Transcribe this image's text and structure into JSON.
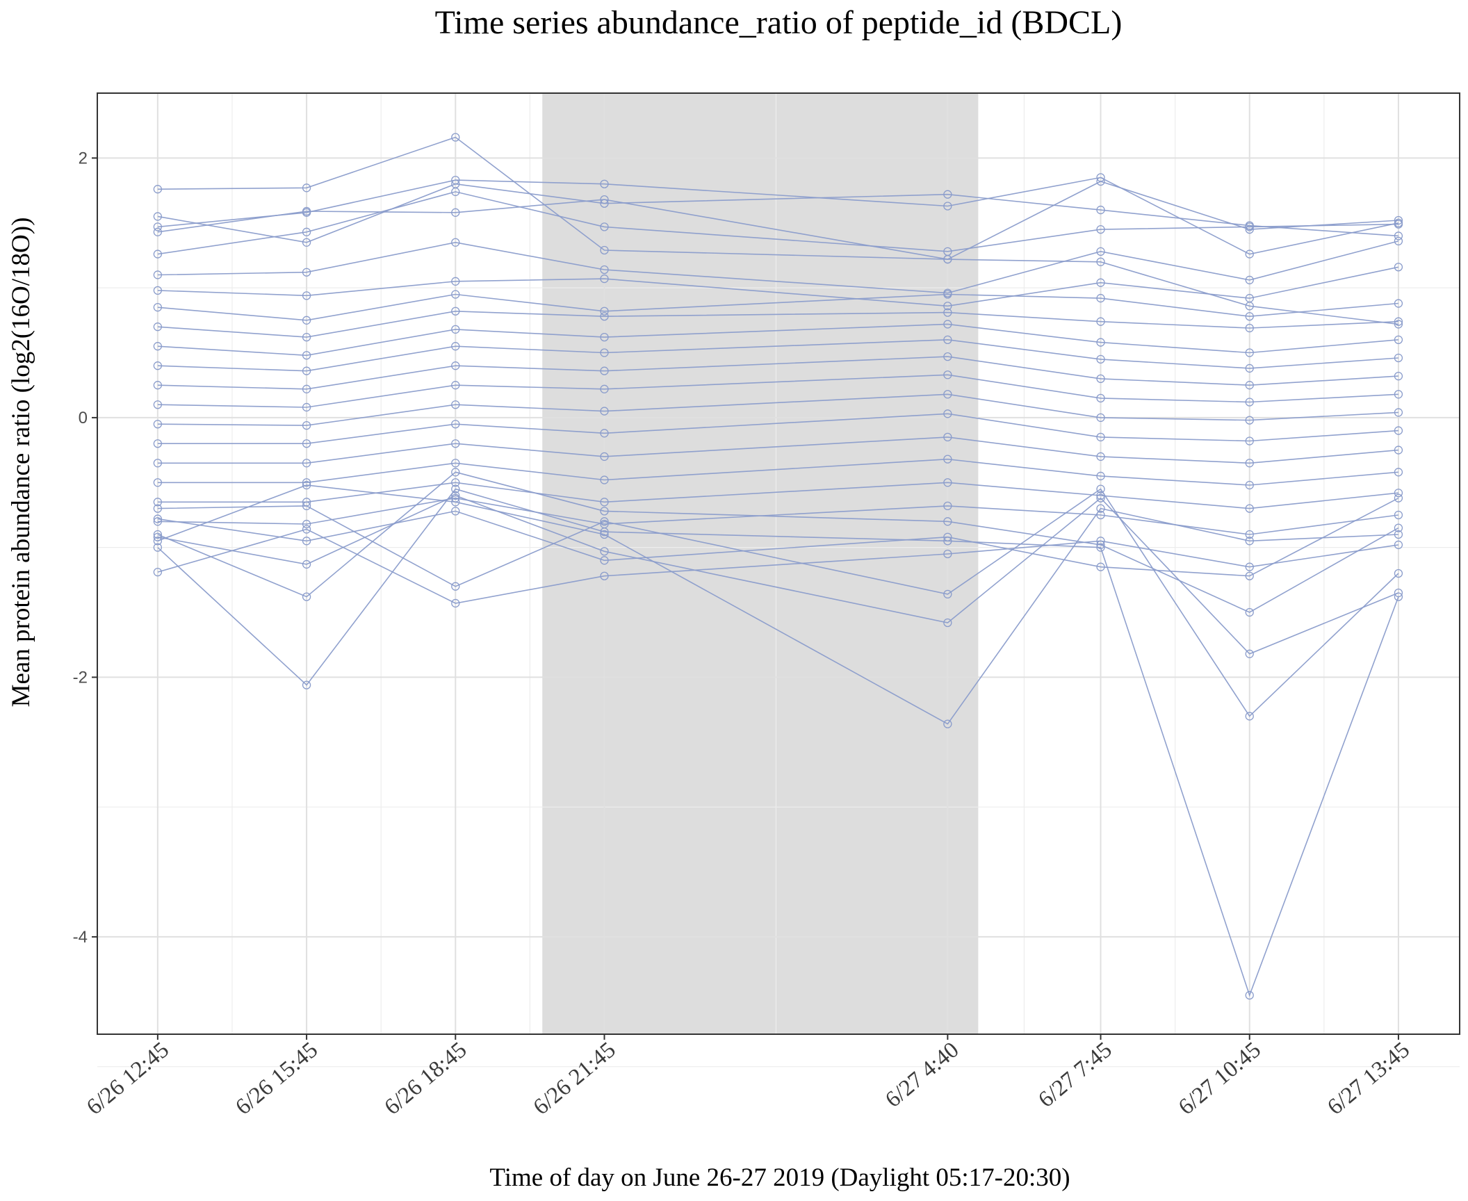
{
  "chart_data": {
    "type": "line",
    "title": "Time series abundance_ratio of peptide_id (BDCL)",
    "xlabel": "Time of day on June 26-27 2019 (Daylight 05:17-20:30)",
    "ylabel": "Mean protein abundance ratio (log2(16O/18O))",
    "x_ticks": [
      {
        "label": "6/26  12:45",
        "time": "2019-06-26 12:45"
      },
      {
        "label": "6/26  15:45",
        "time": "2019-06-26 15:45"
      },
      {
        "label": "6/26  18:45",
        "time": "2019-06-26 18:45"
      },
      {
        "label": "6/26  21:45",
        "time": "2019-06-26 21:45"
      },
      {
        "label": "6/27  4:40",
        "time": "2019-06-27 04:40"
      },
      {
        "label": "6/27  7:45",
        "time": "2019-06-27 07:45"
      },
      {
        "label": "6/27  10:45",
        "time": "2019-06-27 10:45"
      },
      {
        "label": "6/27  13:45",
        "time": "2019-06-27 13:45"
      }
    ],
    "y_ticks": [
      2,
      0,
      -2,
      -4
    ],
    "ylim": [
      -4.75,
      2.5
    ],
    "xlim": [
      "2019-06-26 11:32",
      "2019-06-27 14:59"
    ],
    "night_band": {
      "start": "2019-06-26 20:30",
      "end": "2019-06-27 05:17"
    },
    "grid": true,
    "line_color": "#8a9ccb",
    "band_color": "#dddddd",
    "series_count_note": "",
    "series": [
      {
        "values": [
          1.76,
          1.77,
          2.16,
          1.29,
          1.22,
          1.2,
          0.86,
          0.72
        ]
      },
      {
        "values": [
          1.55,
          1.35,
          1.8,
          1.65,
          1.72,
          1.6,
          1.48,
          1.4
        ]
      },
      {
        "values": [
          1.47,
          1.58,
          1.83,
          1.8,
          1.63,
          1.85,
          1.26,
          1.5
        ]
      },
      {
        "values": [
          1.43,
          1.59,
          1.58,
          1.68,
          1.22,
          1.82,
          1.45,
          1.52
        ]
      },
      {
        "values": [
          1.26,
          1.43,
          1.74,
          1.47,
          1.28,
          1.45,
          1.47,
          1.49
        ]
      },
      {
        "values": [
          1.1,
          1.12,
          1.35,
          1.14,
          0.96,
          1.28,
          1.06,
          1.36
        ]
      },
      {
        "values": [
          0.98,
          0.94,
          1.05,
          1.07,
          0.86,
          1.04,
          0.92,
          1.16
        ]
      },
      {
        "values": [
          0.85,
          0.75,
          0.95,
          0.82,
          0.95,
          0.92,
          0.78,
          0.88
        ]
      },
      {
        "values": [
          0.7,
          0.62,
          0.82,
          0.78,
          0.81,
          0.74,
          0.69,
          0.74
        ]
      },
      {
        "values": [
          0.55,
          0.48,
          0.68,
          0.62,
          0.72,
          0.58,
          0.5,
          0.6
        ]
      },
      {
        "values": [
          0.4,
          0.36,
          0.55,
          0.5,
          0.6,
          0.45,
          0.38,
          0.46
        ]
      },
      {
        "values": [
          0.25,
          0.22,
          0.4,
          0.36,
          0.47,
          0.3,
          0.25,
          0.32
        ]
      },
      {
        "values": [
          0.1,
          0.08,
          0.25,
          0.22,
          0.33,
          0.15,
          0.12,
          0.18
        ]
      },
      {
        "values": [
          -0.05,
          -0.06,
          0.1,
          0.05,
          0.18,
          0.0,
          -0.02,
          0.04
        ]
      },
      {
        "values": [
          -0.2,
          -0.2,
          -0.05,
          -0.12,
          0.03,
          -0.15,
          -0.18,
          -0.1
        ]
      },
      {
        "values": [
          -0.35,
          -0.35,
          -0.2,
          -0.3,
          -0.15,
          -0.3,
          -0.35,
          -0.25
        ]
      },
      {
        "values": [
          -0.5,
          -0.5,
          -0.35,
          -0.48,
          -0.32,
          -0.45,
          -0.52,
          -0.42
        ]
      },
      {
        "values": [
          -0.65,
          -0.65,
          -0.5,
          -0.65,
          -0.5,
          -0.6,
          -0.7,
          -0.58
        ]
      },
      {
        "values": [
          -0.8,
          -0.82,
          -0.62,
          -0.82,
          -0.68,
          -0.75,
          -0.9,
          -0.75
        ]
      },
      {
        "values": [
          -1.19,
          -0.86,
          -1.43,
          -1.22,
          -1.05,
          -0.95,
          -1.15,
          -0.98
        ]
      },
      {
        "values": [
          -0.92,
          -1.13,
          -0.6,
          -1.03,
          -1.58,
          -0.62,
          -1.82,
          -1.35
        ]
      },
      {
        "values": [
          -1.0,
          -2.06,
          -0.55,
          -0.88,
          -0.95,
          -1.0,
          -4.45,
          -1.38
        ]
      },
      {
        "values": [
          -0.95,
          -0.52,
          -0.65,
          -0.9,
          -2.36,
          -0.7,
          -0.95,
          -0.9
        ]
      },
      {
        "values": [
          -0.7,
          -0.68,
          -1.3,
          -0.8,
          -1.36,
          -0.55,
          -2.3,
          -1.2
        ]
      },
      {
        "values": [
          -0.9,
          -1.38,
          -0.42,
          -0.72,
          -0.8,
          -0.98,
          -1.5,
          -0.85
        ]
      },
      {
        "values": [
          -0.78,
          -0.95,
          -0.72,
          -1.1,
          -0.92,
          -1.15,
          -1.22,
          -0.62
        ]
      }
    ]
  }
}
